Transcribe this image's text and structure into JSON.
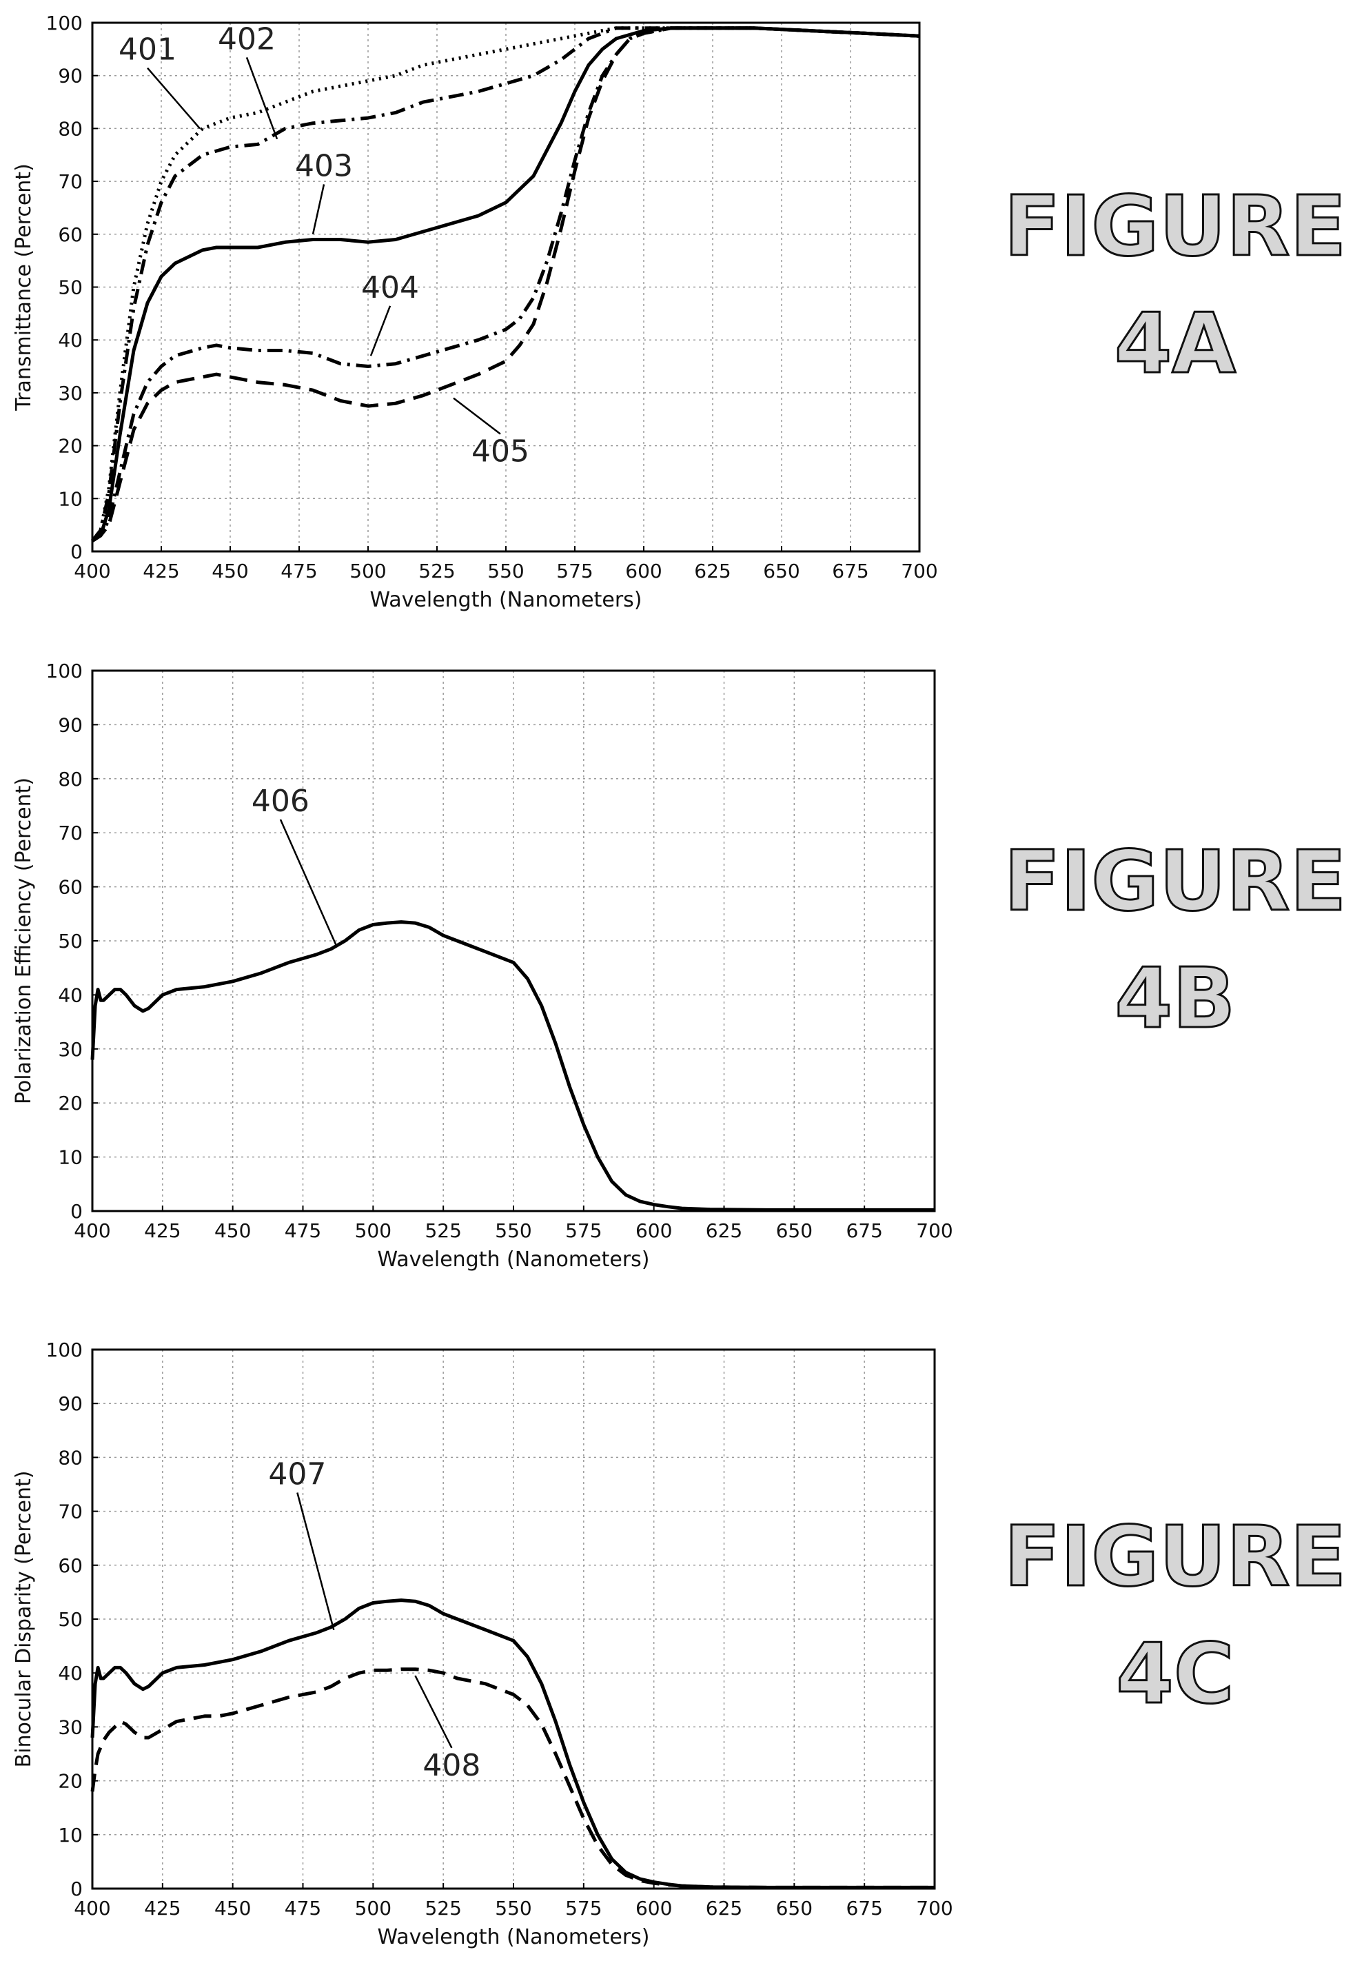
{
  "chart_data": [
    {
      "id": "4A",
      "type": "line",
      "title": "",
      "xlabel": "Wavelength (Nanometers)",
      "ylabel": "Transmittance (Percent)",
      "xlim": [
        400,
        700
      ],
      "ylim": [
        0,
        100
      ],
      "xticks": [
        400,
        425,
        450,
        475,
        500,
        525,
        550,
        575,
        600,
        625,
        650,
        675,
        700
      ],
      "yticks": [
        0,
        10,
        20,
        30,
        40,
        50,
        60,
        70,
        80,
        90,
        100
      ],
      "grid": true,
      "figure_label": [
        "FIGURE",
        "4A"
      ],
      "series": [
        {
          "name": "401",
          "style": "dotted",
          "x": [
            400,
            403,
            406,
            410,
            415,
            420,
            425,
            430,
            440,
            450,
            460,
            470,
            480,
            490,
            500,
            510,
            520,
            530,
            540,
            550,
            560,
            570,
            580,
            590,
            600,
            610,
            620,
            640,
            660,
            680,
            700
          ],
          "y": [
            2,
            4,
            12,
            30,
            50,
            62,
            70,
            75,
            80,
            82,
            83,
            85,
            87,
            88,
            89,
            90,
            92,
            93,
            94,
            95,
            96,
            97,
            98,
            99,
            99,
            99,
            99,
            99,
            98.5,
            98,
            97.5
          ]
        },
        {
          "name": "402",
          "style": "dashdot",
          "x": [
            400,
            403,
            406,
            410,
            415,
            420,
            425,
            430,
            440,
            450,
            460,
            470,
            480,
            490,
            500,
            510,
            520,
            530,
            540,
            550,
            560,
            570,
            580,
            590,
            600,
            610,
            620,
            640,
            660,
            680,
            700
          ],
          "y": [
            2,
            4,
            11,
            28,
            46,
            58,
            66,
            71,
            75,
            76.5,
            77,
            80,
            81,
            81.5,
            82,
            83,
            85,
            86,
            87,
            88.5,
            90,
            93,
            97,
            99,
            99,
            99,
            99,
            99,
            98.5,
            98,
            97.5
          ]
        },
        {
          "name": "403",
          "style": "solid",
          "x": [
            400,
            403,
            406,
            410,
            415,
            420,
            425,
            430,
            440,
            445,
            450,
            460,
            470,
            480,
            490,
            500,
            510,
            520,
            530,
            540,
            550,
            560,
            570,
            575,
            580,
            585,
            590,
            600,
            610,
            620,
            640,
            660,
            680,
            700
          ],
          "y": [
            2,
            3,
            8,
            22,
            38,
            47,
            52,
            54.5,
            57,
            57.5,
            57.5,
            57.5,
            58.5,
            59,
            59,
            58.5,
            59,
            60.5,
            62,
            63.5,
            66,
            71,
            81,
            87,
            92,
            95,
            97,
            98.5,
            99,
            99,
            99,
            98.5,
            98,
            97.5
          ]
        },
        {
          "name": "404",
          "style": "dashdot",
          "x": [
            400,
            403,
            406,
            410,
            415,
            420,
            425,
            430,
            440,
            445,
            450,
            460,
            470,
            480,
            490,
            500,
            510,
            520,
            530,
            540,
            550,
            555,
            560,
            565,
            570,
            575,
            580,
            585,
            590,
            595,
            600,
            610,
            620,
            640,
            660,
            680,
            700
          ],
          "y": [
            2,
            3,
            6,
            15,
            26,
            32,
            35,
            37,
            38.5,
            39,
            38.5,
            38,
            38,
            37.5,
            35.5,
            35,
            35.5,
            37,
            38.5,
            40,
            42,
            44,
            48,
            55,
            64,
            74,
            83,
            90,
            94,
            97,
            98,
            99,
            99,
            99,
            98.5,
            98,
            97.5
          ]
        },
        {
          "name": "405",
          "style": "dashed",
          "x": [
            400,
            403,
            406,
            410,
            415,
            420,
            425,
            430,
            440,
            445,
            450,
            460,
            470,
            480,
            490,
            500,
            510,
            520,
            530,
            540,
            550,
            555,
            560,
            565,
            570,
            575,
            580,
            585,
            590,
            595,
            600,
            610,
            620,
            640,
            660,
            680,
            700
          ],
          "y": [
            2,
            3,
            5,
            13,
            23,
            28,
            30.5,
            32,
            33,
            33.5,
            33,
            32,
            31.5,
            30.5,
            28.5,
            27.5,
            28,
            29.5,
            31.5,
            33.5,
            36,
            39,
            43,
            51,
            61,
            72,
            82,
            89,
            94,
            97,
            98,
            99,
            99,
            99,
            98.5,
            98,
            97.5
          ]
        }
      ],
      "annotations": [
        {
          "label": "401",
          "x": 420,
          "y": 93,
          "tx": 439,
          "ty": 80
        },
        {
          "label": "402",
          "x": 456,
          "y": 95,
          "tx": 467,
          "ty": 78
        },
        {
          "label": "403",
          "x": 484,
          "y": 71,
          "tx": 480,
          "ty": 60
        },
        {
          "label": "404",
          "x": 508,
          "y": 48,
          "tx": 501,
          "ty": 37
        },
        {
          "label": "405",
          "x": 548,
          "y": 17,
          "tx": 531,
          "ty": 29
        }
      ]
    },
    {
      "id": "4B",
      "type": "line",
      "title": "",
      "xlabel": "Wavelength (Nanometers)",
      "ylabel": "Polarization Efficiency (Percent)",
      "xlim": [
        400,
        700
      ],
      "ylim": [
        0,
        100
      ],
      "xticks": [
        400,
        425,
        450,
        475,
        500,
        525,
        550,
        575,
        600,
        625,
        650,
        675,
        700
      ],
      "yticks": [
        0,
        10,
        20,
        30,
        40,
        50,
        60,
        70,
        80,
        90,
        100
      ],
      "grid": true,
      "figure_label": [
        "FIGURE",
        "4B"
      ],
      "series": [
        {
          "name": "406",
          "style": "solid",
          "x": [
            400,
            401,
            402,
            403,
            404,
            406,
            408,
            410,
            412,
            415,
            418,
            420,
            425,
            430,
            440,
            445,
            450,
            460,
            470,
            480,
            485,
            490,
            495,
            500,
            505,
            510,
            515,
            520,
            525,
            530,
            540,
            550,
            555,
            560,
            565,
            570,
            575,
            580,
            585,
            590,
            595,
            600,
            605,
            610,
            620,
            640,
            660,
            680,
            700
          ],
          "y": [
            28,
            38,
            41,
            39,
            39,
            40,
            41,
            41,
            40,
            38,
            37,
            37.5,
            40,
            41,
            41.5,
            42,
            42.5,
            44,
            46,
            47.5,
            48.5,
            50,
            52,
            53,
            53.3,
            53.5,
            53.3,
            52.5,
            51,
            50,
            48,
            46,
            43,
            38,
            31,
            23,
            16,
            10,
            5.5,
            3,
            1.8,
            1.2,
            0.8,
            0.5,
            0.3,
            0.2,
            0.2,
            0.2,
            0.2
          ]
        }
      ],
      "annotations": [
        {
          "label": "406",
          "x": 467,
          "y": 74,
          "tx": 487,
          "ty": 49
        }
      ]
    },
    {
      "id": "4C",
      "type": "line",
      "title": "",
      "xlabel": "Wavelength (Nanometers)",
      "ylabel": "Binocular Disparity (Percent)",
      "xlim": [
        400,
        700
      ],
      "ylim": [
        0,
        100
      ],
      "xticks": [
        400,
        425,
        450,
        475,
        500,
        525,
        550,
        575,
        600,
        625,
        650,
        675,
        700
      ],
      "yticks": [
        0,
        10,
        20,
        30,
        40,
        50,
        60,
        70,
        80,
        90,
        100
      ],
      "grid": true,
      "figure_label": [
        "FIGURE",
        "4C"
      ],
      "series": [
        {
          "name": "407",
          "style": "solid",
          "x": [
            400,
            401,
            402,
            403,
            404,
            406,
            408,
            410,
            412,
            415,
            418,
            420,
            425,
            430,
            440,
            445,
            450,
            460,
            470,
            480,
            485,
            490,
            495,
            500,
            505,
            510,
            515,
            520,
            525,
            530,
            540,
            550,
            555,
            560,
            565,
            570,
            575,
            580,
            585,
            590,
            595,
            600,
            605,
            610,
            620,
            640,
            660,
            680,
            700
          ],
          "y": [
            28,
            38,
            41,
            39,
            39,
            40,
            41,
            41,
            40,
            38,
            37,
            37.5,
            40,
            41,
            41.5,
            42,
            42.5,
            44,
            46,
            47.5,
            48.5,
            50,
            52,
            53,
            53.3,
            53.5,
            53.3,
            52.5,
            51,
            50,
            48,
            46,
            43,
            38,
            31,
            23,
            16,
            10,
            5.5,
            3,
            1.8,
            1.2,
            0.8,
            0.5,
            0.3,
            0.2,
            0.2,
            0.2,
            0.2
          ]
        },
        {
          "name": "408",
          "style": "dashed",
          "x": [
            400,
            401,
            402,
            404,
            406,
            408,
            410,
            412,
            415,
            418,
            420,
            425,
            430,
            440,
            445,
            450,
            460,
            470,
            480,
            485,
            490,
            495,
            500,
            505,
            510,
            515,
            520,
            525,
            530,
            540,
            550,
            555,
            560,
            565,
            570,
            575,
            580,
            585,
            590,
            595,
            600,
            605,
            610,
            620,
            640,
            660,
            680,
            700
          ],
          "y": [
            18,
            22,
            25,
            27.5,
            29,
            30,
            31,
            30.5,
            29,
            28,
            28,
            29.5,
            31,
            32,
            32,
            32.5,
            34,
            35.5,
            36.5,
            37.5,
            39,
            40,
            40.5,
            40.5,
            40.7,
            40.7,
            40.5,
            40,
            39,
            38,
            36,
            34,
            30.5,
            25,
            19,
            13,
            8,
            4.5,
            2.5,
            1.5,
            1,
            0.7,
            0.5,
            0.3,
            0.2,
            0.2,
            0.2,
            0.2
          ]
        }
      ],
      "annotations": [
        {
          "label": "407",
          "x": 473,
          "y": 75,
          "tx": 486,
          "ty": 48
        },
        {
          "label": "408",
          "x": 528,
          "y": 21,
          "tx": 515,
          "ty": 39.5
        }
      ]
    }
  ]
}
